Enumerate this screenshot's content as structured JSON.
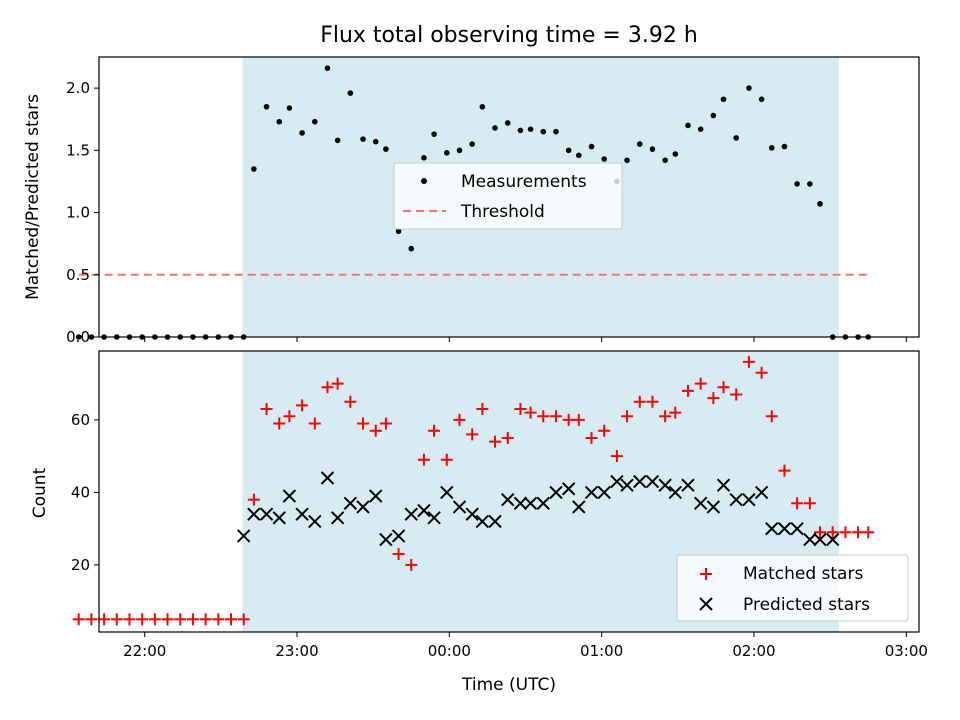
{
  "figure": {
    "title": "Flux total observing time = 3.92 h",
    "xlabel": "Time (UTC)"
  },
  "colors": {
    "shade": "#add8e6",
    "measurement": "#000000",
    "threshold": "#ff6f6f",
    "matched": "#ff0000",
    "predicted": "#000000"
  },
  "chart_data": [
    {
      "type": "scatter",
      "title": "Flux total observing time = 3.92 h",
      "ylabel": "Matched/Predicted stars",
      "xlabel": "",
      "x_unit": "minutes after 00:00 UTC",
      "xlim": [
        -138,
        185
      ],
      "ylim": [
        0,
        2.25
      ],
      "x_ticks": [
        -120,
        -60,
        0,
        60,
        120,
        180
      ],
      "x_tick_labels": [
        "22:00",
        "23:00",
        "00:00",
        "01:00",
        "02:00",
        "03:00"
      ],
      "y_ticks": [
        0,
        0.5,
        1.0,
        1.5,
        2.0
      ],
      "y_tick_labels": [
        "0.0",
        "0.5",
        "1.0",
        "1.5",
        "2.0"
      ],
      "shaded_span": [
        -81.5,
        153.5
      ],
      "legend_position": "center",
      "series": [
        {
          "name": "Measurements",
          "kind": "dot",
          "x": [
            -146,
            -141,
            -136,
            -131,
            -126,
            -121,
            -116,
            -111,
            -106,
            -101,
            -96,
            -91,
            -86,
            -81,
            -77,
            -72,
            -67,
            -63,
            -58,
            -53,
            -48,
            -44,
            -39,
            -34,
            -29,
            -25,
            -20,
            -15,
            -10,
            -6,
            -1,
            4,
            9,
            13,
            18,
            23,
            28,
            32,
            37,
            42,
            47,
            51,
            56,
            61,
            66,
            70,
            75,
            80,
            85,
            89,
            94,
            99,
            104,
            108,
            113,
            118,
            123,
            127,
            132,
            137,
            142,
            146,
            151,
            156,
            161,
            165
          ],
          "y": [
            0,
            0,
            0,
            0,
            0,
            0,
            0,
            0,
            0,
            0,
            0,
            0,
            0,
            0,
            1.35,
            1.85,
            1.73,
            1.84,
            1.64,
            1.73,
            2.16,
            1.58,
            1.96,
            1.59,
            1.57,
            1.51,
            0.85,
            0.71,
            1.44,
            1.63,
            1.48,
            1.5,
            1.55,
            1.85,
            1.68,
            1.72,
            1.66,
            1.67,
            1.65,
            1.65,
            1.5,
            1.46,
            1.53,
            1.43,
            1.25,
            1.42,
            1.55,
            1.51,
            1.42,
            1.47,
            1.7,
            1.67,
            1.78,
            1.91,
            1.6,
            2.0,
            1.91,
            1.52,
            1.53,
            1.23,
            1.23,
            1.07,
            0,
            0,
            0,
            0
          ]
        },
        {
          "name": "Threshold",
          "kind": "dashed-line",
          "x": [
            -146,
            165
          ],
          "y": [
            0.5,
            0.5
          ]
        }
      ]
    },
    {
      "type": "scatter",
      "ylabel": "Count",
      "xlabel": "Time (UTC)",
      "x_unit": "minutes after 00:00 UTC",
      "xlim": [
        -138,
        185
      ],
      "ylim": [
        1.5,
        79
      ],
      "x_ticks": [
        -120,
        -60,
        0,
        60,
        120,
        180
      ],
      "x_tick_labels": [
        "22:00",
        "23:00",
        "00:00",
        "01:00",
        "02:00",
        "03:00"
      ],
      "y_ticks": [
        20,
        40,
        60
      ],
      "y_tick_labels": [
        "20",
        "40",
        "60"
      ],
      "shaded_span": [
        -81.5,
        153.5
      ],
      "legend_position": "lower right",
      "series": [
        {
          "name": "Matched stars",
          "marker": "plus",
          "x": [
            -146,
            -141,
            -136,
            -131,
            -126,
            -121,
            -116,
            -111,
            -106,
            -101,
            -96,
            -91,
            -86,
            -81,
            -77,
            -72,
            -67,
            -63,
            -58,
            -53,
            -48,
            -44,
            -39,
            -34,
            -29,
            -25,
            -20,
            -15,
            -10,
            -6,
            -1,
            4,
            9,
            13,
            18,
            23,
            28,
            32,
            37,
            42,
            47,
            51,
            56,
            61,
            66,
            70,
            75,
            80,
            85,
            89,
            94,
            99,
            104,
            108,
            113,
            118,
            123,
            127,
            132,
            137,
            142,
            146,
            151,
            156,
            161,
            165
          ],
          "y": [
            5,
            5,
            5,
            5,
            5,
            5,
            5,
            5,
            5,
            5,
            5,
            5,
            5,
            5,
            38,
            63,
            59,
            61,
            64,
            59,
            69,
            70,
            65,
            59,
            57,
            59,
            23,
            20,
            49,
            57,
            49,
            60,
            56,
            63,
            54,
            55,
            63,
            62,
            61,
            61,
            60,
            60,
            55,
            57,
            50,
            61,
            65,
            65,
            61,
            62,
            68,
            70,
            66,
            69,
            67,
            76,
            73,
            61,
            46,
            37,
            37,
            29,
            29,
            29,
            29,
            29
          ]
        },
        {
          "name": "Predicted stars",
          "marker": "x",
          "x": [
            -81,
            -77,
            -72,
            -67,
            -63,
            -58,
            -53,
            -48,
            -44,
            -39,
            -34,
            -29,
            -25,
            -20,
            -15,
            -10,
            -6,
            -1,
            4,
            9,
            13,
            18,
            23,
            28,
            32,
            37,
            42,
            47,
            51,
            56,
            61,
            66,
            70,
            75,
            80,
            85,
            89,
            94,
            99,
            104,
            108,
            113,
            118,
            123,
            127,
            132,
            137,
            142,
            146,
            151
          ],
          "y": [
            28,
            34,
            34,
            33,
            39,
            34,
            32,
            44,
            33,
            37,
            36,
            39,
            27,
            28,
            34,
            35,
            33,
            40,
            36,
            34,
            32,
            32,
            38,
            37,
            37,
            37,
            40,
            41,
            36,
            40,
            40,
            43,
            42,
            43,
            43,
            42,
            40,
            42,
            37,
            36,
            42,
            38,
            38,
            40,
            30,
            30,
            30,
            27,
            27,
            27
          ]
        }
      ]
    }
  ]
}
